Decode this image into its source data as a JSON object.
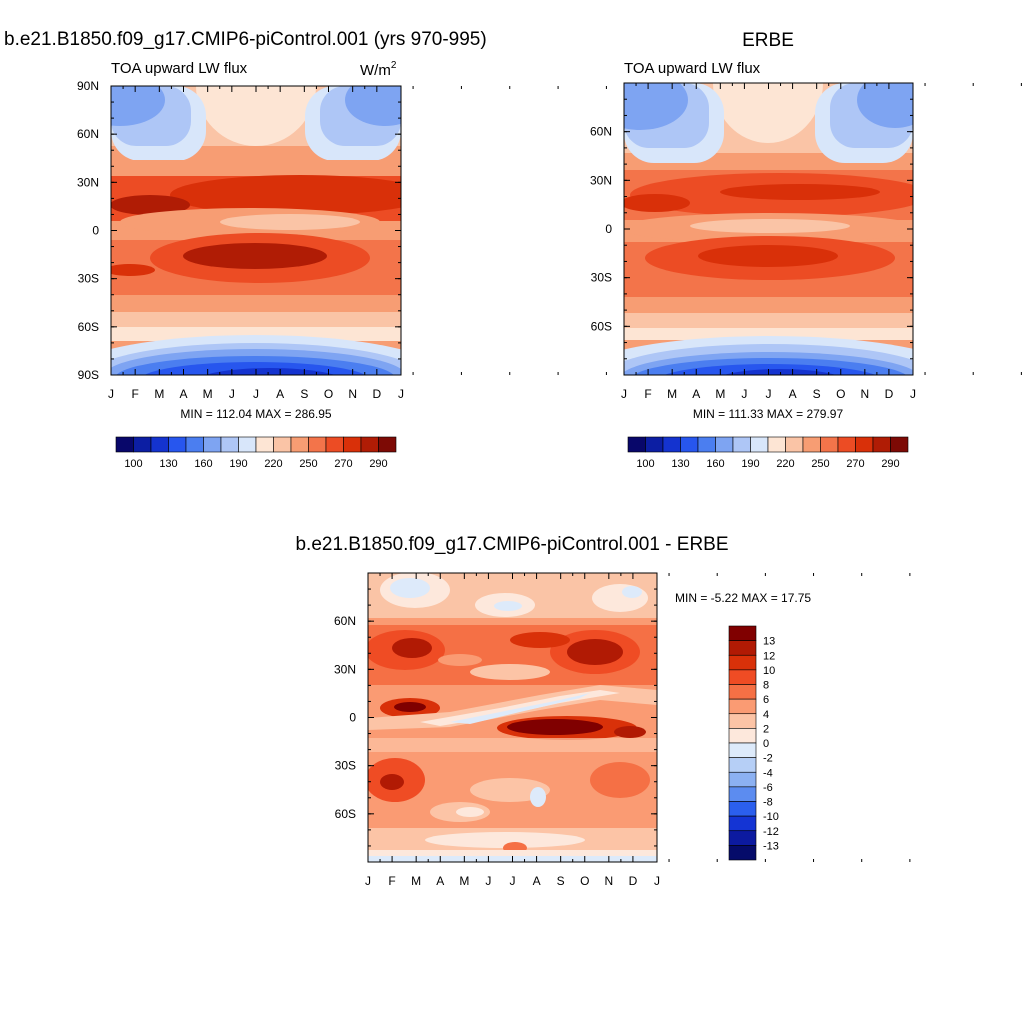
{
  "panels": {
    "model": {
      "title": "b.e21.B1850.f09_g17.CMIP6-piControl.001 (yrs 970-995)",
      "subtitle_left": "TOA upward LW flux",
      "units": "W/m",
      "units_sup": "2",
      "stats": "MIN = 112.04  MAX = 286.95"
    },
    "obs": {
      "title": "ERBE",
      "subtitle_left": "TOA upward LW flux",
      "stats": "MIN = 111.33  MAX = 279.97"
    },
    "diff": {
      "title": "b.e21.B1850.f09_g17.CMIP6-piControl.001 - ERBE",
      "stats": "MIN =  -5.22  MAX =  17.75"
    }
  },
  "chart_data": [
    {
      "type": "heatmap",
      "title": "b.e21.B1850.f09_g17.CMIP6-piControl.001 (yrs 970-995)",
      "subtitle": "TOA upward LW flux",
      "units": "W/m2",
      "x_tick_labels": [
        "J",
        "F",
        "M",
        "A",
        "M",
        "J",
        "J",
        "A",
        "S",
        "O",
        "N",
        "D",
        "J"
      ],
      "y_tick_labels": [
        "90N",
        "60N",
        "30N",
        "0",
        "30S",
        "60S",
        "90S"
      ],
      "xlim": [
        0,
        12
      ],
      "ylim": [
        -90,
        90
      ],
      "min": 112.04,
      "max": 286.95,
      "colorbar_levels": [
        100,
        110,
        120,
        130,
        140,
        150,
        160,
        170,
        180,
        190,
        200,
        210,
        220,
        230,
        240,
        250,
        260,
        270,
        280,
        290
      ],
      "colorbar_tick_labels": [
        "100",
        "130",
        "160",
        "190",
        "220",
        "250",
        "270",
        "290"
      ],
      "colorbar_colors": [
        "#08076a",
        "#0c1ea3",
        "#1433cf",
        "#2756ee",
        "#4b7ef0",
        "#7ea4f2",
        "#aec6f6",
        "#d8e6fa",
        "#fde5d4",
        "#fac4a6",
        "#f79d73",
        "#f3744a",
        "#ec4c24",
        "#d93009",
        "#b01c05",
        "#7d0a05"
      ],
      "zonal_profile_lat": [
        90,
        75,
        60,
        45,
        30,
        20,
        15,
        5,
        0,
        -10,
        -20,
        -30,
        -45,
        -60,
        -75,
        -90
      ],
      "zonal_profile_value": [
        175,
        190,
        215,
        235,
        258,
        270,
        270,
        245,
        238,
        255,
        268,
        258,
        235,
        205,
        165,
        130
      ]
    },
    {
      "type": "heatmap",
      "title": "ERBE",
      "subtitle": "TOA upward LW flux",
      "x_tick_labels": [
        "J",
        "F",
        "M",
        "A",
        "M",
        "J",
        "J",
        "A",
        "S",
        "O",
        "N",
        "D",
        "J"
      ],
      "y_tick_labels": [
        "60N",
        "30N",
        "0",
        "30S",
        "60S"
      ],
      "xlim": [
        0,
        12
      ],
      "ylim": [
        -90,
        90
      ],
      "min": 111.33,
      "max": 279.97,
      "colorbar_tick_labels": [
        "100",
        "130",
        "160",
        "190",
        "220",
        "250",
        "270",
        "290"
      ],
      "zonal_profile_lat": [
        90,
        75,
        60,
        45,
        30,
        20,
        15,
        5,
        0,
        -10,
        -20,
        -30,
        -45,
        -60,
        -75,
        -90
      ],
      "zonal_profile_value": [
        170,
        188,
        213,
        232,
        255,
        265,
        262,
        242,
        235,
        250,
        262,
        253,
        232,
        203,
        163,
        128
      ]
    },
    {
      "type": "heatmap",
      "title": "b.e21.B1850.f09_g17.CMIP6-piControl.001 - ERBE",
      "x_tick_labels": [
        "J",
        "F",
        "M",
        "A",
        "M",
        "J",
        "J",
        "A",
        "S",
        "O",
        "N",
        "D",
        "J"
      ],
      "y_tick_labels": [
        "60N",
        "30N",
        "0",
        "30S",
        "60S"
      ],
      "xlim": [
        0,
        12
      ],
      "ylim": [
        -90,
        90
      ],
      "min": -5.22,
      "max": 17.75,
      "colorbar_levels": [
        13,
        12,
        10,
        8,
        6,
        4,
        2,
        0,
        -2,
        -4,
        -6,
        -8,
        -10,
        -12,
        -13
      ],
      "colorbar_tick_labels": [
        "13",
        "12",
        "10",
        "8",
        "6",
        "4",
        "2",
        "0",
        "-2",
        "-4",
        "-6",
        "-8",
        "-10",
        "-12",
        "-13"
      ],
      "colorbar_colors": [
        "#800000",
        "#b11a04",
        "#d93109",
        "#ef4c24",
        "#f57045",
        "#fa9b73",
        "#fcc4a6",
        "#fde8dc",
        "#ddeafa",
        "#b6cff6",
        "#8cb1f2",
        "#5c8cf0",
        "#2b5fee",
        "#1434d4",
        "#0c1aa0",
        "#050b6a"
      ]
    }
  ]
}
